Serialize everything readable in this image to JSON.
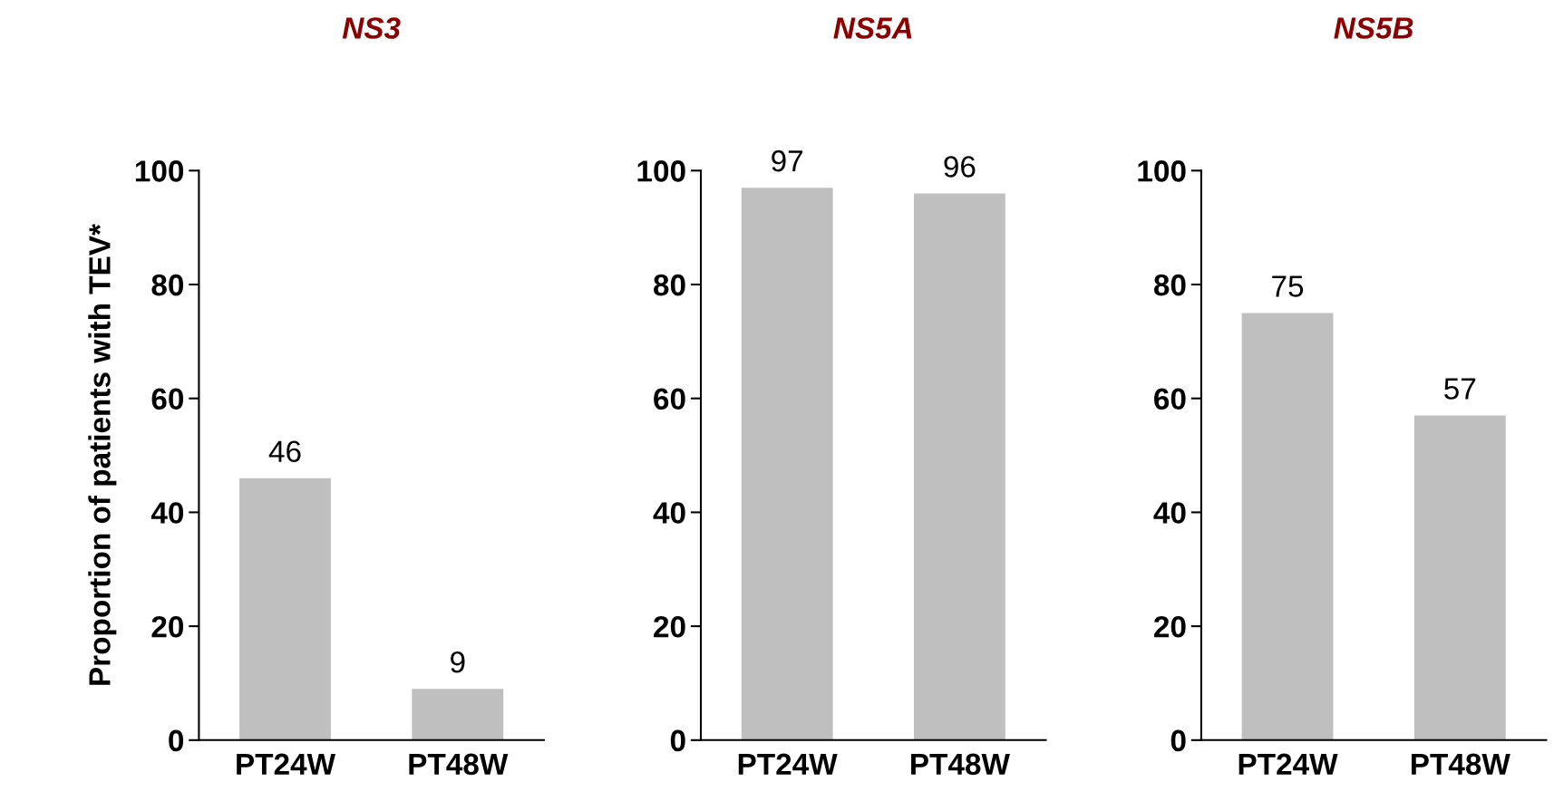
{
  "chart_data": [
    {
      "type": "bar",
      "title": "NS3",
      "ylabel": "Proportion of patients with TEV*",
      "categories": [
        "PT24W",
        "PT48W"
      ],
      "values": [
        46,
        9
      ],
      "color": "#bfbfbf",
      "ylim": [
        0,
        100
      ],
      "yticks": [
        0,
        20,
        40,
        60,
        80,
        100
      ],
      "data_labels": true,
      "grid": false,
      "legend": false
    },
    {
      "type": "bar",
      "title": "NS5A",
      "categories": [
        "PT24W",
        "PT48W"
      ],
      "values": [
        97,
        96
      ],
      "color": "#bfbfbf",
      "ylim": [
        0,
        100
      ],
      "yticks": [
        0,
        20,
        40,
        60,
        80,
        100
      ],
      "data_labels": true,
      "grid": false,
      "legend": false
    },
    {
      "type": "bar",
      "title": "NS5B",
      "categories": [
        "PT24W",
        "PT48W"
      ],
      "values": [
        75,
        57
      ],
      "color": "#bfbfbf",
      "ylim": [
        0,
        100
      ],
      "yticks": [
        0,
        20,
        40,
        60,
        80,
        100
      ],
      "data_labels": true,
      "grid": false,
      "legend": false
    }
  ]
}
